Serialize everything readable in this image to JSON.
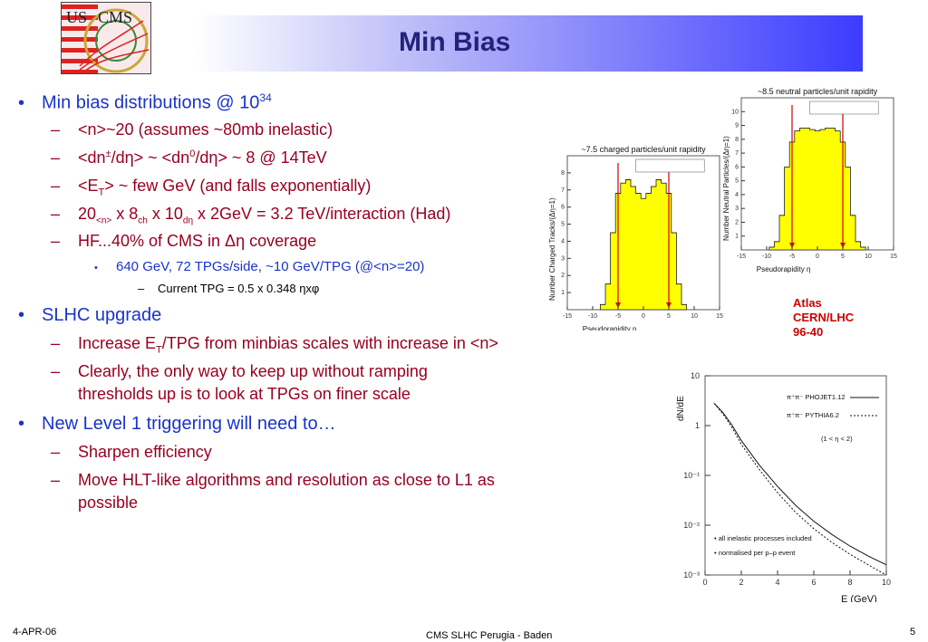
{
  "slide": {
    "title": "Min Bias",
    "logo_text": "US CMS",
    "bullets": [
      {
        "text": "Min bias distributions @ 10",
        "sup": "34"
      },
      {
        "text": "SLHC upgrade"
      },
      {
        "text": "New Level 1 triggering will need to…"
      }
    ],
    "sub1": {
      "a": "<n>~20 (assumes ~80mb inelastic)",
      "b1": "<dn",
      "b_sup1": "±",
      "b2": "/dη> ~ <dn",
      "b_sup2": "0",
      "b3": "/dη> ~ 8 @ 14TeV",
      "c1": "<E",
      "c_sub": "T",
      "c2": "> ~ few GeV (and falls exponentially)",
      "d1": "20",
      "d_sub1": "<n>",
      "d2": " x 8",
      "d_sub2": "ch",
      "d3": " x 10",
      "d_sub3": "dη",
      "d4": " x 2GeV = 3.2 TeV/interaction (Had)",
      "e": "HF...40% of CMS in Δη coverage",
      "e_sub": "640 GeV, 72 TPGs/side, ~10 GeV/TPG (@<n>=20)",
      "e_subsub": "Current TPG = 0.5 x 0.348 ηxφ"
    },
    "sub2": {
      "a1": "Increase E",
      "a_sub": "T",
      "a2": "/TPG from minbias scales with increase in <n>",
      "b_line1": "Clearly, the only way to keep up without ramping",
      "b_line2": "thresholds up is to look at TPGs on finer scale"
    },
    "sub3": {
      "a": "Sharpen efficiency",
      "b_line1": "Move HLT-like algorithms and  resolution as close to L1 as",
      "b_line2": "possible"
    },
    "atlas_note": [
      "Atlas",
      "CERN/LHC",
      "96-40"
    ],
    "footer": {
      "date": "4-APR-06",
      "center": "CMS SLHC Perugia - Baden",
      "page": "5"
    }
  },
  "chart_data": [
    {
      "type": "histogram",
      "title": "~7.5 charged particles/unit rapidity",
      "xlabel": "Pseudorapidity η",
      "ylabel": "Number Charged Tracks/(Δη=1)",
      "xlim": [
        -15,
        15
      ],
      "ylim": [
        0,
        9
      ],
      "x_ticks": [
        "-15",
        "-10",
        "-5",
        "0",
        "5",
        "10",
        "15"
      ],
      "y_ticks": [
        "1",
        "2",
        "3",
        "4",
        "5",
        "6",
        "7",
        "8"
      ],
      "fill_color": "#ffff00",
      "x": [
        -8,
        -7,
        -6,
        -5,
        -4,
        -3,
        -2,
        -1,
        0,
        1,
        2,
        3,
        4,
        5,
        6,
        7,
        8
      ],
      "values": [
        0.3,
        1.5,
        4.5,
        6.8,
        7.4,
        7.6,
        7.2,
        6.8,
        6.5,
        6.8,
        7.2,
        7.6,
        7.4,
        6.8,
        4.5,
        1.5,
        0.3
      ],
      "markers_x": [
        -5,
        5
      ]
    },
    {
      "type": "histogram",
      "title": "~8.5 neutral particles/unit rapidity",
      "xlabel": "Pseudorapidity η",
      "ylabel": "Number Neutral Particles/(Δη=1)",
      "xlim": [
        -15,
        15
      ],
      "ylim": [
        0,
        11
      ],
      "x_ticks": [
        "-15",
        "-10",
        "-5",
        "0",
        "5",
        "10",
        "15"
      ],
      "y_ticks": [
        "1",
        "2",
        "3",
        "4",
        "5",
        "6",
        "7",
        "8",
        "9",
        "10"
      ],
      "fill_color": "#ffff00",
      "x": [
        -9,
        -8,
        -7,
        -6,
        -5,
        -4,
        -3,
        -2,
        -1,
        0,
        1,
        2,
        3,
        4,
        5,
        6,
        7,
        8,
        9
      ],
      "values": [
        0.2,
        0.6,
        2.5,
        6,
        7.8,
        8.6,
        8.8,
        8.8,
        8.7,
        8.6,
        8.7,
        8.8,
        8.8,
        8.6,
        7.8,
        6,
        2.5,
        0.6,
        0.2
      ],
      "markers_x": [
        -5,
        5
      ]
    },
    {
      "type": "line",
      "xlabel": "E (GeV)",
      "ylabel": "dN/dE",
      "xlim": [
        0,
        10
      ],
      "ylim": [
        0.001,
        10
      ],
      "log_y": true,
      "x_ticks": [
        "0",
        "2",
        "4",
        "6",
        "8",
        "10"
      ],
      "y_ticks": [
        "10",
        "1",
        "10⁻¹",
        "10⁻²",
        "10⁻³"
      ],
      "legend": [
        "π⁺π⁻  PHOJET1.12",
        "π⁺π⁻  PYTHIA6.2",
        "(1 < η < 2)"
      ],
      "notes": [
        "• all inelastic processes included",
        "• normalised per p–p event"
      ],
      "x": [
        0.5,
        1,
        1.5,
        2,
        3,
        4,
        5,
        6,
        7,
        8,
        9,
        10
      ],
      "series": [
        {
          "name": "PHOJET1.12",
          "style": "solid",
          "values": [
            2.8,
            1.8,
            1.0,
            0.5,
            0.16,
            0.06,
            0.025,
            0.012,
            0.0065,
            0.0038,
            0.0024,
            0.0016
          ]
        },
        {
          "name": "PYTHIA6.2",
          "style": "dotted",
          "values": [
            2.8,
            1.7,
            0.9,
            0.42,
            0.13,
            0.045,
            0.018,
            0.0085,
            0.0045,
            0.0026,
            0.0016,
            0.001
          ]
        }
      ]
    }
  ]
}
